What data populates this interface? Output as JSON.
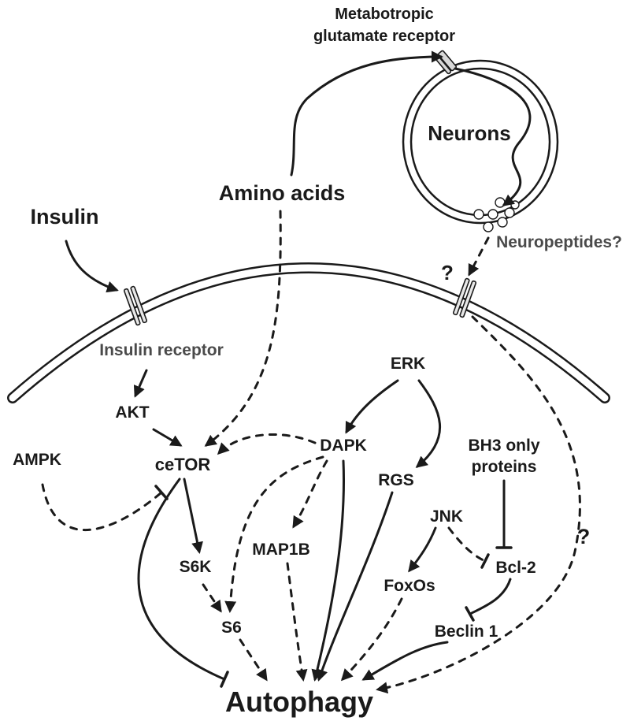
{
  "labels": {
    "metabotropic_line1": "Metabotropic",
    "metabotropic_line2": "glutamate receptor",
    "neurons": "Neurons",
    "amino_acids": "Amino acids",
    "insulin": "Insulin",
    "neuropeptides": "Neuropeptides?",
    "question_membrane": "?",
    "insulin_receptor": "Insulin receptor",
    "erk": "ERK",
    "akt": "AKT",
    "dapk": "DAPK",
    "bh3_line1": "BH3 only",
    "bh3_line2": "proteins",
    "ampk": "AMPK",
    "cetor": "ceTOR",
    "rgs": "RGS",
    "jnk": "JNK",
    "map1b": "MAP1B",
    "s6k": "S6K",
    "bcl2": "Bcl-2",
    "question_right": "?",
    "foxos": "FoxOs",
    "s6": "S6",
    "beclin1": "Beclin 1",
    "autophagy": "Autophagy"
  },
  "colors": {
    "ink": "#1a1a1a",
    "gray_text": "#4a4a4a",
    "membrane_fill": "#ffffff",
    "receptor_fill": "#d9d9d9"
  }
}
